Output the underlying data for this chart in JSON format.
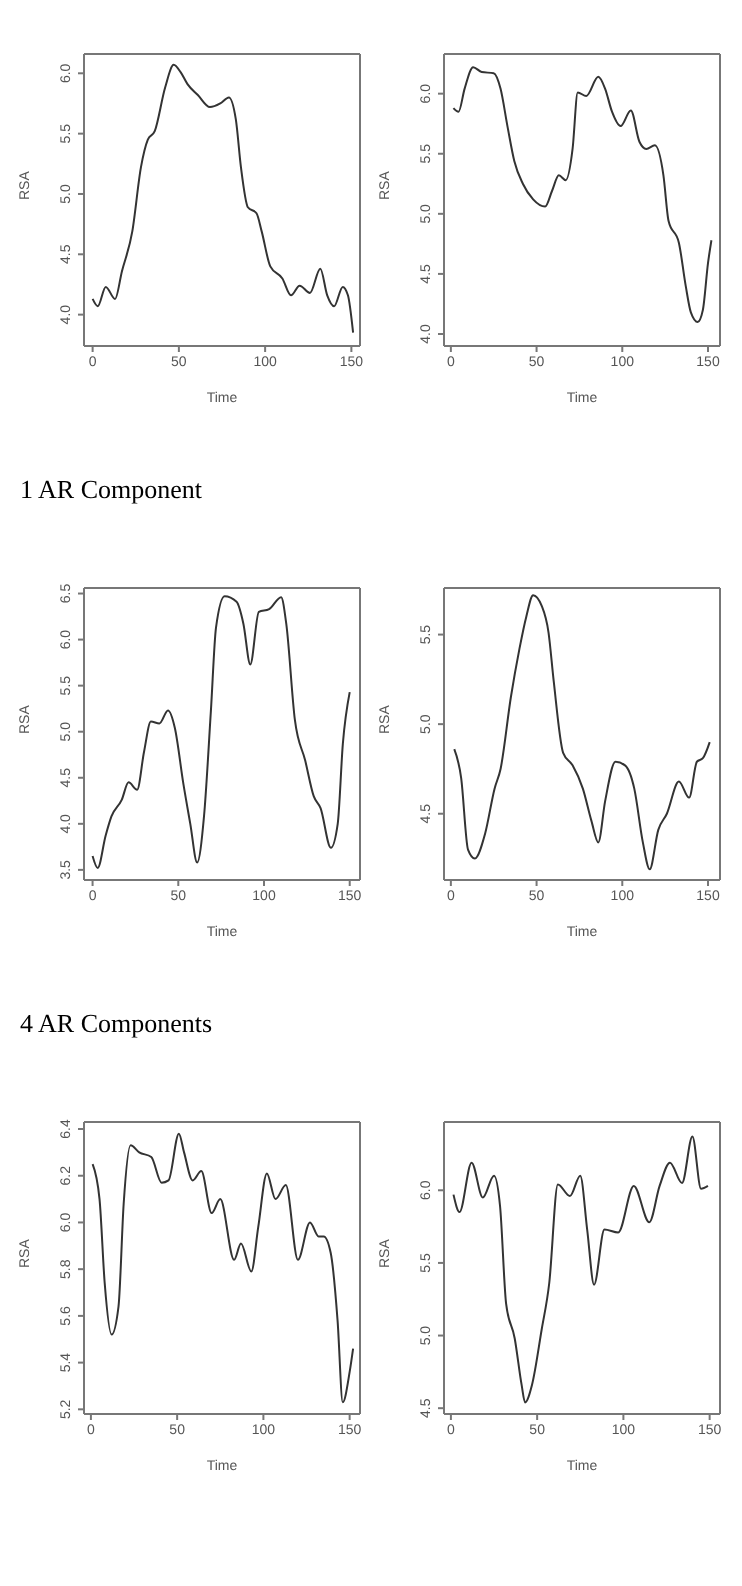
{
  "chart_data": [
    {
      "type": "line",
      "xlabel": "Time",
      "ylabel": "RSA",
      "xlim": [
        -5,
        155
      ],
      "ylim": [
        3.74,
        6.16
      ],
      "xticks": [
        0,
        50,
        100,
        150
      ],
      "yticks": [
        {
          "value": 4,
          "label": "4.0"
        },
        4.5,
        {
          "value": 5,
          "label": "5.0"
        },
        5.5,
        {
          "value": 6,
          "label": "6.0"
        }
      ],
      "series": [
        {
          "color": "#333333",
          "x": [
            0,
            3,
            7.6,
            13,
            17,
            23,
            28,
            32,
            36,
            42,
            47,
            51,
            55,
            61,
            68,
            74,
            79,
            83,
            86,
            90,
            95,
            98,
            103,
            110,
            115,
            120,
            126,
            132,
            136,
            140,
            145,
            148,
            151
          ],
          "values": [
            4.13,
            4.07,
            4.23,
            4.13,
            4.36,
            4.69,
            5.22,
            5.45,
            5.52,
            5.88,
            6.07,
            6.01,
            5.91,
            5.82,
            5.72,
            5.75,
            5.8,
            5.62,
            5.22,
            4.89,
            4.84,
            4.69,
            4.4,
            4.3,
            4.16,
            4.24,
            4.18,
            4.38,
            4.16,
            4.07,
            4.23,
            4.16,
            3.85
          ]
        }
      ]
    },
    {
      "type": "line",
      "xlabel": "Time",
      "ylabel": "RSA",
      "xlim": [
        -4,
        157
      ],
      "ylim": [
        3.9,
        6.33
      ],
      "xticks": [
        0,
        50,
        100,
        150
      ],
      "yticks": [
        {
          "value": 4,
          "label": "4.0"
        },
        4.5,
        {
          "value": 5,
          "label": "5.0"
        },
        5.5,
        {
          "value": 6,
          "label": "6.0"
        }
      ],
      "series": [
        {
          "color": "#333333",
          "x": [
            1.5,
            4.5,
            8,
            13,
            18,
            25,
            29,
            33,
            37,
            42,
            48,
            55,
            59,
            63,
            67,
            71,
            74,
            79,
            86,
            90,
            94,
            99,
            105,
            110,
            114,
            119,
            124,
            127,
            133,
            137,
            140,
            144,
            147,
            150,
            152
          ],
          "values": [
            5.88,
            5.85,
            6.04,
            6.22,
            6.18,
            6.17,
            6.04,
            5.73,
            5.44,
            5.25,
            5.12,
            5.06,
            5.19,
            5.32,
            5.28,
            5.54,
            6.01,
            5.98,
            6.14,
            6.04,
            5.85,
            5.73,
            5.86,
            5.6,
            5.54,
            5.57,
            5.32,
            4.94,
            4.76,
            4.4,
            4.18,
            4.1,
            4.2,
            4.59,
            4.78
          ]
        }
      ]
    },
    {
      "type": "line",
      "title": "1 AR Component",
      "xlabel": "Time",
      "ylabel": "RSA",
      "xlim": [
        -5,
        156
      ],
      "ylim": [
        3.39,
        6.56
      ],
      "xticks": [
        0,
        50,
        100,
        150
      ],
      "yticks": [
        3.5,
        {
          "value": 4,
          "label": "4.0"
        },
        4.5,
        {
          "value": 5,
          "label": "5.0"
        },
        5.5,
        {
          "value": 6,
          "label": "6.0"
        },
        6.5
      ],
      "series": [
        {
          "color": "#333333",
          "x": [
            0,
            3,
            7.6,
            11,
            17,
            21,
            26,
            30,
            34,
            39,
            44,
            48,
            53,
            57,
            61,
            65,
            69,
            72,
            77,
            84,
            88,
            92,
            97,
            103,
            110,
            113,
            118,
            124,
            129,
            133,
            139,
            143,
            146,
            150
          ],
          "values": [
            3.65,
            3.52,
            3.87,
            4.08,
            4.26,
            4.45,
            4.37,
            4.78,
            5.11,
            5.09,
            5.23,
            5.04,
            4.43,
            4.0,
            3.58,
            4.08,
            5.22,
            6.13,
            6.47,
            6.41,
            6.17,
            5.73,
            6.3,
            6.33,
            6.46,
            6.17,
            5.13,
            4.69,
            4.3,
            4.17,
            3.74,
            4.0,
            4.87,
            5.43
          ]
        }
      ]
    },
    {
      "type": "line",
      "xlabel": "Time",
      "ylabel": "RSA",
      "xlim": [
        -4,
        157
      ],
      "ylim": [
        4.13,
        5.76
      ],
      "xticks": [
        0,
        50,
        100,
        150
      ],
      "yticks": [
        4.5,
        {
          "value": 5,
          "label": "5.0"
        },
        5.5
      ],
      "series": [
        {
          "color": "#333333",
          "x": [
            2,
            6,
            10,
            14,
            20,
            25.5,
            29,
            35,
            40,
            44,
            48,
            53,
            57,
            60,
            65.5,
            71,
            77,
            82,
            86,
            90,
            96,
            101.6,
            107,
            112,
            116,
            121,
            126,
            133,
            139,
            143.5,
            147,
            151
          ],
          "values": [
            4.86,
            4.7,
            4.3,
            4.25,
            4.39,
            4.64,
            4.75,
            5.15,
            5.42,
            5.6,
            5.72,
            5.66,
            5.51,
            5.24,
            4.84,
            4.77,
            4.64,
            4.46,
            4.34,
            4.57,
            4.79,
            4.77,
            4.64,
            4.34,
            4.19,
            4.41,
            4.5,
            4.68,
            4.59,
            4.79,
            4.81,
            4.9
          ]
        }
      ]
    },
    {
      "type": "line",
      "title": "4 AR Components",
      "xlabel": "Time",
      "ylabel": "RSA",
      "xlim": [
        -4,
        156
      ],
      "ylim": [
        5.18,
        6.43
      ],
      "xticks": [
        0,
        50,
        100,
        150
      ],
      "yticks": [
        5.2,
        5.4,
        5.6,
        5.8,
        {
          "value": 6,
          "label": "6.0"
        },
        6.2,
        6.4
      ],
      "series": [
        {
          "color": "#333333",
          "x": [
            1,
            5,
            8,
            12,
            16,
            19,
            23,
            28,
            35,
            41,
            45,
            51,
            54,
            59,
            64,
            70,
            75,
            83,
            87,
            93,
            97,
            102,
            107,
            113,
            120,
            127,
            132,
            135,
            139,
            143,
            146,
            150,
            152
          ],
          "values": [
            6.25,
            6.1,
            5.74,
            5.52,
            5.64,
            6.08,
            6.33,
            6.3,
            6.28,
            6.17,
            6.18,
            6.38,
            6.3,
            6.18,
            6.22,
            6.04,
            6.1,
            5.84,
            5.91,
            5.79,
            5.98,
            6.21,
            6.1,
            6.16,
            5.84,
            6.0,
            5.94,
            5.94,
            5.87,
            5.58,
            5.23,
            5.36,
            5.46
          ]
        }
      ]
    },
    {
      "type": "line",
      "xlabel": "Time",
      "ylabel": "RSA",
      "xlim": [
        -4,
        156
      ],
      "ylim": [
        4.46,
        6.47
      ],
      "xticks": [
        0,
        50,
        100,
        150
      ],
      "yticks": [
        4.5,
        {
          "value": 5,
          "label": "5.0"
        },
        5.5,
        {
          "value": 6,
          "label": "6.0"
        }
      ],
      "series": [
        {
          "color": "#333333",
          "x": [
            1.5,
            5,
            12,
            18.5,
            25,
            28.5,
            32,
            37,
            41,
            43,
            47,
            52.6,
            57,
            62,
            69,
            75,
            79,
            83,
            89,
            97,
            106,
            115,
            121,
            127,
            134,
            140,
            145,
            149
          ],
          "values": [
            5.97,
            5.85,
            6.19,
            5.95,
            6.1,
            5.89,
            5.22,
            4.98,
            4.66,
            4.54,
            4.66,
            5.04,
            5.36,
            6.04,
            5.96,
            6.1,
            5.73,
            5.35,
            5.73,
            5.71,
            6.03,
            5.78,
            6.03,
            6.19,
            6.05,
            6.37,
            6.01,
            6.03
          ]
        }
      ]
    }
  ]
}
